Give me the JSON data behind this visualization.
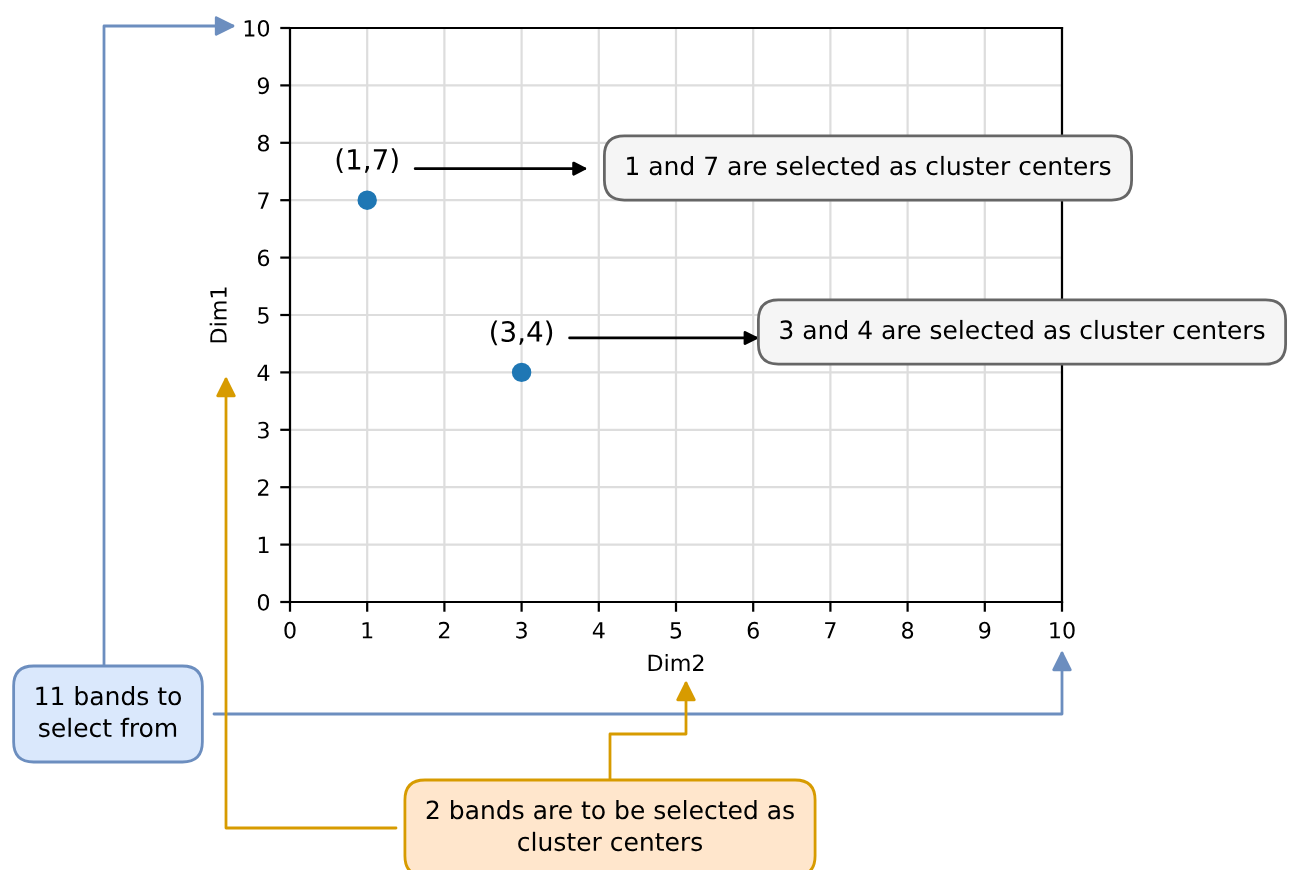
{
  "chart_data": {
    "type": "scatter",
    "xlabel": "Dim2",
    "ylabel": "Dim1",
    "x": [
      1,
      3
    ],
    "values": [
      7,
      4
    ],
    "color": "#1f77b4",
    "marker": "circle",
    "xlim": [
      0,
      10
    ],
    "ylim": [
      0,
      10
    ],
    "xticks": [
      0,
      1,
      2,
      3,
      4,
      5,
      6,
      7,
      8,
      9,
      10
    ],
    "yticks": [
      0,
      1,
      2,
      3,
      4,
      5,
      6,
      7,
      8,
      9,
      10
    ],
    "grid": true,
    "annotations": [
      {
        "text": "(1,7)",
        "x": 1,
        "y": 7
      },
      {
        "text": "(3,4)",
        "x": 3,
        "y": 4
      },
      "1 and 7 are selected as cluster centers",
      "3 and 4 are selected as cluster centers",
      "11 bands to\nselect from",
      "2 bands are to be selected as\ncluster centers"
    ]
  }
}
